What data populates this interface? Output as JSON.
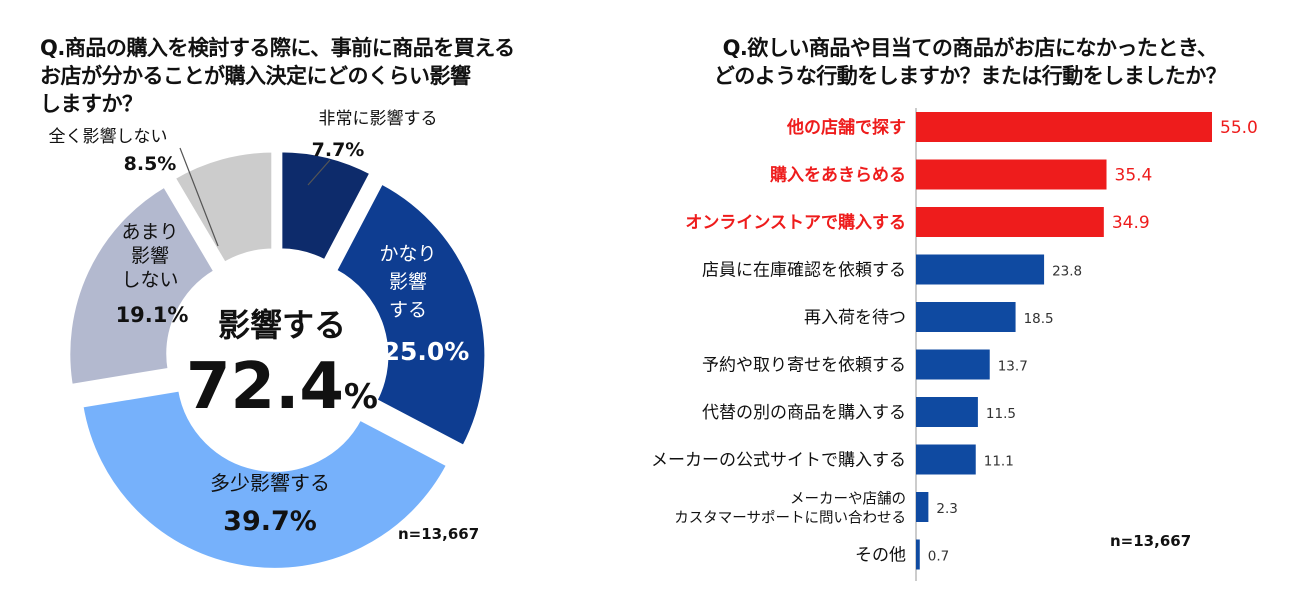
{
  "chart_data": [
    {
      "type": "pie",
      "variant": "donut",
      "title": "Q.商品の購入を検討する際に、事前に商品を買えるお店が分かることが購入決定にどのくらい影響しますか？",
      "title_lines": [
        "Q.商品の購入を検討する際に、事前に商品を買える",
        "お店が分かることが購入決定にどのくらい影響",
        "しますか？"
      ],
      "center_label": "影響する",
      "center_value": "72.4",
      "center_unit": "%",
      "n_label": "n=13,667",
      "slices": [
        {
          "label": "非常に影響する",
          "label_lines": [
            "非常に影響する"
          ],
          "value": 7.7,
          "display": "7.7%",
          "color": "#0d2b6b"
        },
        {
          "label": "かなり影響する",
          "label_lines": [
            "かなり",
            "影響",
            "する"
          ],
          "value": 25.0,
          "display": "25.0%",
          "color": "#0e3d91"
        },
        {
          "label": "多少影響する",
          "label_lines": [
            "多少影響する"
          ],
          "value": 39.7,
          "display": "39.7%",
          "color": "#76b1fb"
        },
        {
          "label": "あまり影響しない",
          "label_lines": [
            "あまり",
            "影響",
            "しない"
          ],
          "value": 19.1,
          "display": "19.1%",
          "color": "#b3b9cf"
        },
        {
          "label": "全く影響しない",
          "label_lines": [
            "全く影響しない"
          ],
          "value": 8.5,
          "display": "8.5%",
          "color": "#cccccc"
        }
      ]
    },
    {
      "type": "bar",
      "orientation": "horizontal",
      "title": "Q.欲しい商品や目当ての商品がお店になかったとき、どのような行動をしますか？または行動をしましたか？",
      "title_lines": [
        "Q.欲しい商品や目当ての商品がお店になかったとき、",
        "どのような行動をしますか？または行動をしましたか？"
      ],
      "n_label": "n=13,667",
      "xlim": [
        0,
        55
      ],
      "highlight_color": "#ee1c1c",
      "default_color": "#0f4aa1",
      "categories": [
        {
          "label_lines": [
            "他の店舗で探す"
          ],
          "value": 55.0,
          "display": "55.0",
          "highlight": true
        },
        {
          "label_lines": [
            "購入をあきらめる"
          ],
          "value": 35.4,
          "display": "35.4",
          "highlight": true
        },
        {
          "label_lines": [
            "オンラインストアで購入する"
          ],
          "value": 34.9,
          "display": "34.9",
          "highlight": true
        },
        {
          "label_lines": [
            "店員に在庫確認を依頼する"
          ],
          "value": 23.8,
          "display": "23.8",
          "highlight": false
        },
        {
          "label_lines": [
            "再入荷を待つ"
          ],
          "value": 18.5,
          "display": "18.5",
          "highlight": false
        },
        {
          "label_lines": [
            "予約や取り寄せを依頼する"
          ],
          "value": 13.7,
          "display": "13.7",
          "highlight": false
        },
        {
          "label_lines": [
            "代替の別の商品を購入する"
          ],
          "value": 11.5,
          "display": "11.5",
          "highlight": false
        },
        {
          "label_lines": [
            "メーカーの公式サイトで購入する"
          ],
          "value": 11.1,
          "display": "11.1",
          "highlight": false
        },
        {
          "label_lines": [
            "メーカーや店舗の",
            "カスタマーサポートに問い合わせる"
          ],
          "value": 2.3,
          "display": "2.3",
          "highlight": false
        },
        {
          "label_lines": [
            "その他"
          ],
          "value": 0.7,
          "display": "0.7",
          "highlight": false
        }
      ]
    }
  ]
}
